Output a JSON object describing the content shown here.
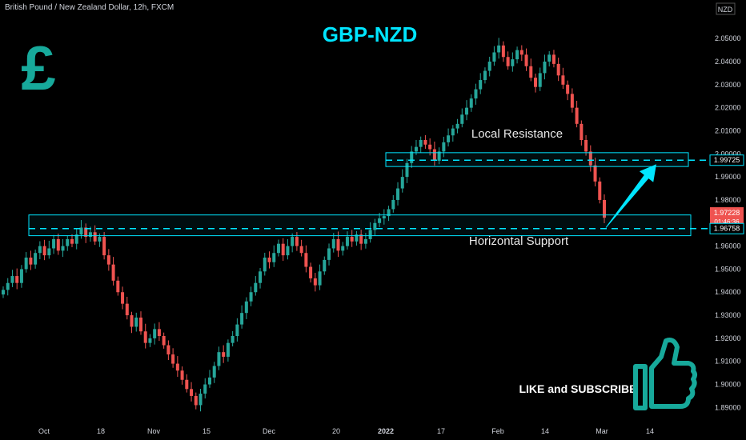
{
  "header": {
    "symbol_title": "British Pound / New Zealand Dollar, 12h, FXCM",
    "pair_heading": "GBP-NZD",
    "currency_label": "NZD"
  },
  "colors": {
    "up": "#26a69a",
    "down": "#ef5350",
    "accent": "#00e5ff",
    "pound_logo": "#17a99b",
    "background": "#000000",
    "axis_text": "#d1d4dc"
  },
  "icons": {
    "pound_logo": "pound-sign",
    "like_icon": "thumbs-up"
  },
  "annotations": {
    "resistance_label": "Local Resistance",
    "support_label": "Horizontal Support",
    "cta": "LIKE and SUBSCRIBE"
  },
  "price_tags": {
    "resistance": "1.99725",
    "current_price": "1.97228",
    "countdown": "01:46:36",
    "support": "1.96758"
  },
  "chart_data": {
    "type": "candlestick",
    "title": "GBP-NZD",
    "subtitle": "British Pound / New Zealand Dollar, 12h, FXCM",
    "ylabel": "NZD",
    "ylim": [
      1.887,
      2.057
    ],
    "yticks": [
      "2.05000",
      "2.04000",
      "2.03000",
      "2.02000",
      "2.01000",
      "2.00000",
      "1.99000",
      "1.98000",
      "1.97000",
      "1.96000",
      "1.95000",
      "1.94000",
      "1.93000",
      "1.92000",
      "1.91000",
      "1.90000",
      "1.89000"
    ],
    "xticks": [
      "Oct",
      "18",
      "Nov",
      "15",
      "Dec",
      "20",
      "2022",
      "17",
      "Feb",
      "14",
      "Mar",
      "14"
    ],
    "levels": [
      {
        "name": "Local Resistance",
        "price": 1.99725,
        "zone": [
          1.9945,
          2.0005
        ]
      },
      {
        "name": "Horizontal Support",
        "price": 1.96758,
        "zone": [
          1.9645,
          1.9735
        ]
      }
    ],
    "last_price": 1.97228,
    "projection": {
      "from": 1.968,
      "to": 1.9955
    },
    "closes": [
      1.941,
      1.944,
      1.947,
      1.944,
      1.95,
      1.955,
      1.952,
      1.957,
      1.96,
      1.956,
      1.959,
      1.963,
      1.958,
      1.96,
      1.963,
      1.961,
      1.965,
      1.968,
      1.964,
      1.966,
      1.962,
      1.964,
      1.956,
      1.952,
      1.945,
      1.94,
      1.935,
      1.93,
      1.925,
      1.929,
      1.923,
      1.918,
      1.92,
      1.924,
      1.921,
      1.917,
      1.913,
      1.909,
      1.906,
      1.902,
      1.898,
      1.895,
      1.891,
      1.896,
      1.9,
      1.903,
      1.908,
      1.914,
      1.912,
      1.918,
      1.921,
      1.926,
      1.931,
      1.936,
      1.94,
      1.944,
      1.949,
      1.955,
      1.953,
      1.957,
      1.961,
      1.956,
      1.96,
      1.964,
      1.96,
      1.957,
      1.951,
      1.946,
      1.943,
      1.949,
      1.954,
      1.959,
      1.963,
      1.958,
      1.96,
      1.964,
      1.962,
      1.965,
      1.961,
      1.963,
      1.967,
      1.97,
      1.972,
      1.973,
      1.976,
      1.98,
      1.985,
      1.99,
      1.996,
      2.001,
      2.003,
      2.006,
      2.004,
      2.002,
      1.997,
      2.001,
      2.005,
      2.008,
      2.011,
      2.013,
      2.017,
      2.02,
      2.024,
      2.028,
      2.032,
      2.036,
      2.04,
      2.044,
      2.047,
      2.042,
      2.038,
      2.041,
      2.045,
      2.043,
      2.038,
      2.033,
      2.029,
      2.035,
      2.04,
      2.043,
      2.039,
      2.034,
      2.03,
      2.026,
      2.02,
      2.013,
      2.006,
      2.001,
      1.995,
      1.988,
      1.98,
      1.9723
    ]
  }
}
